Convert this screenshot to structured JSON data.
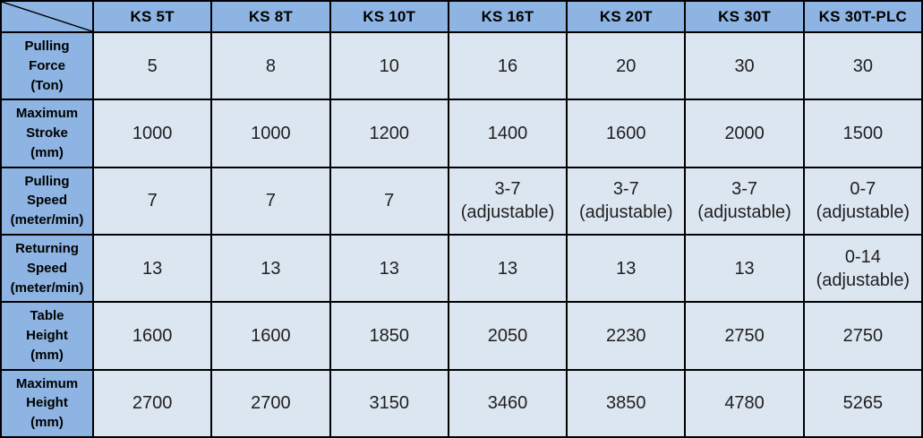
{
  "colors": {
    "header_bg": "#8db4e2",
    "cell_bg": "#dce6f1",
    "border_color": "#000000",
    "header_text": "#000000",
    "value_text": "#1f1f1f"
  },
  "table": {
    "corner_label": "",
    "columns": [
      "KS 5T",
      "KS 8T",
      "KS 10T",
      "KS 16T",
      "KS 20T",
      "KS 30T",
      "KS 30T-PLC"
    ],
    "rows": [
      {
        "key": "pulling-force",
        "label": "Pulling\nForce\n(Ton)",
        "values": [
          "5",
          "8",
          "10",
          "16",
          "20",
          "30",
          "30"
        ]
      },
      {
        "key": "maximum-stroke",
        "label": "Maximum\nStroke\n(mm)",
        "values": [
          "1000",
          "1000",
          "1200",
          "1400",
          "1600",
          "2000",
          "1500"
        ]
      },
      {
        "key": "pulling-speed",
        "label": "Pulling\nSpeed\n(meter/min)",
        "values": [
          "7",
          "7",
          "7",
          "3-7\n(adjustable)",
          "3-7\n(adjustable)",
          "3-7\n(adjustable)",
          "0-7\n(adjustable)"
        ]
      },
      {
        "key": "returning-speed",
        "label": "Returning\nSpeed\n(meter/min)",
        "values": [
          "13",
          "13",
          "13",
          "13",
          "13",
          "13",
          "0-14\n(adjustable)"
        ]
      },
      {
        "key": "table-height",
        "label": "Table\nHeight\n(mm)",
        "values": [
          "1600",
          "1600",
          "1850",
          "2050",
          "2230",
          "2750",
          "2750"
        ]
      },
      {
        "key": "maximum-height",
        "label": "Maximum\nHeight\n(mm)",
        "values": [
          "2700",
          "2700",
          "3150",
          "3460",
          "3850",
          "4780",
          "5265"
        ]
      }
    ]
  }
}
